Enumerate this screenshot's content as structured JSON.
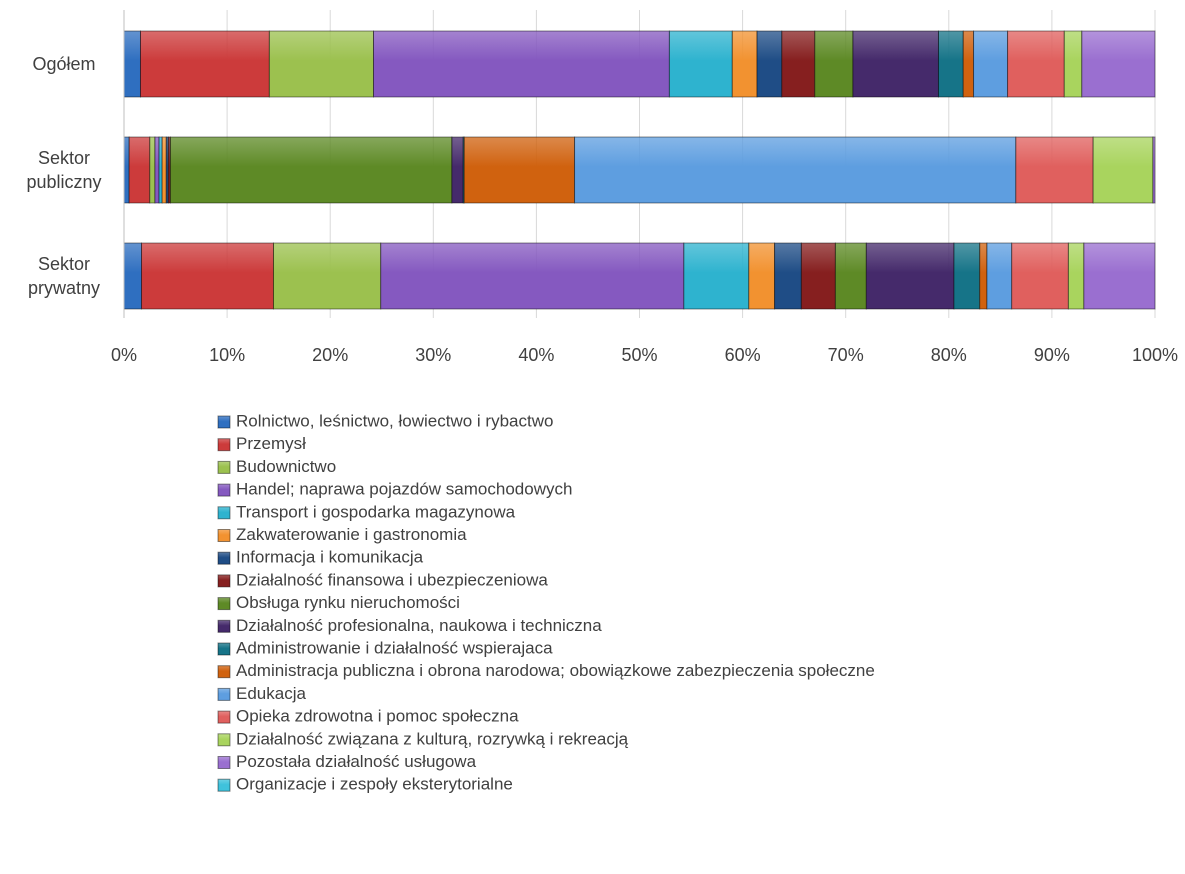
{
  "chart_data": {
    "type": "stacked_barh",
    "categories": [
      "Ogółem",
      "Sektor publiczny",
      "Sektor prywatny"
    ],
    "xlim": [
      0,
      100
    ],
    "xticks": [
      {
        "value": 0,
        "label": "0%"
      },
      {
        "value": 10,
        "label": "10%"
      },
      {
        "value": 20,
        "label": "20%"
      },
      {
        "value": 30,
        "label": "30%"
      },
      {
        "value": 40,
        "label": "40%"
      },
      {
        "value": 50,
        "label": "50%"
      },
      {
        "value": 60,
        "label": "60%"
      },
      {
        "value": 70,
        "label": "70%"
      },
      {
        "value": 80,
        "label": "80%"
      },
      {
        "value": 90,
        "label": "90%"
      },
      {
        "value": 100,
        "label": "100%"
      }
    ],
    "grid": true,
    "legend": "bottom",
    "series": [
      {
        "name": "Rolnictwo, leśnictwo, łowiectwo i rybactwo",
        "color": "#2f6fc0",
        "values": [
          1.6,
          0.5,
          1.7
        ]
      },
      {
        "name": "Przemysł",
        "color": "#cc3b3b",
        "values": [
          12.5,
          2.0,
          12.8
        ]
      },
      {
        "name": "Budownictwo",
        "color": "#9cc14f",
        "values": [
          10.1,
          0.5,
          10.4
        ]
      },
      {
        "name": "Handel; naprawa pojazdów samochodowych",
        "color": "#8559c0",
        "values": [
          28.7,
          0.4,
          29.4
        ]
      },
      {
        "name": "Transport i gospodarka magazynowa",
        "color": "#2eb3cf",
        "values": [
          6.1,
          0.3,
          6.3
        ]
      },
      {
        "name": "Zakwaterowanie i gastronomia",
        "color": "#f29230",
        "values": [
          2.4,
          0.4,
          2.5
        ]
      },
      {
        "name": "Informacja i komunikacja",
        "color": "#1f4d86",
        "values": [
          2.4,
          0.2,
          2.6
        ]
      },
      {
        "name": "Działalność finansowa i ubezpieczeniowa",
        "color": "#861f1f",
        "values": [
          3.2,
          0.2,
          3.3
        ]
      },
      {
        "name": "Obsługa rynku nieruchomości",
        "color": "#5e8a26",
        "values": [
          3.7,
          27.3,
          3.0
        ]
      },
      {
        "name": "Działalność profesionalna, naukowa i techniczna",
        "color": "#452a6b",
        "values": [
          8.3,
          1.1,
          8.5
        ]
      },
      {
        "name": "Administrowanie i działalność wspierajaca",
        "color": "#167488",
        "values": [
          2.4,
          0.1,
          2.5
        ]
      },
      {
        "name": "Administracja publiczna i obrona narodowa; obowiązkowe zabezpieczenia społeczne",
        "color": "#d0620f",
        "values": [
          1.0,
          10.7,
          0.7
        ]
      },
      {
        "name": "Edukacja",
        "color": "#5e9ee0",
        "values": [
          3.3,
          42.8,
          2.4
        ]
      },
      {
        "name": "Opieka zdrowotna i pomoc społeczna",
        "color": "#e0605e",
        "values": [
          5.5,
          7.5,
          5.5
        ]
      },
      {
        "name": "Działalność związana z kulturą, rozrywką i rekreacją",
        "color": "#a9d45e",
        "values": [
          1.7,
          5.8,
          1.5
        ]
      },
      {
        "name": "Pozostała działalność usługowa",
        "color": "#9a6fd0",
        "values": [
          7.1,
          0.2,
          6.9
        ]
      },
      {
        "name": "Organizacje i zespoły eksterytorialne",
        "color": "#3fc2dc",
        "values": [
          0,
          0,
          0
        ]
      }
    ]
  }
}
